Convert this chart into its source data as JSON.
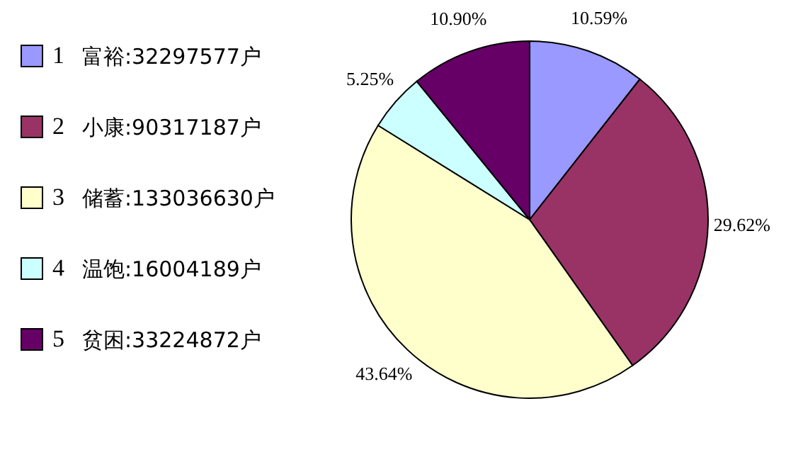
{
  "chart_data": {
    "type": "pie",
    "categories": [
      "1",
      "2",
      "3",
      "4",
      "5"
    ],
    "values": [
      10.59,
      29.62,
      43.64,
      5.25,
      10.9
    ],
    "colors": [
      "#9999ff",
      "#993366",
      "#ffffcc",
      "#ccffff",
      "#660066"
    ],
    "value_labels": [
      "10.59%",
      "29.62%",
      "43.64%",
      "5.25%",
      "10.90%"
    ],
    "annotations": [
      "富裕:32297577户",
      "小康:90317187户",
      "储蓄:133036630户",
      "温饱:16004189户",
      "贫困:33224872户"
    ],
    "legend": "left"
  }
}
